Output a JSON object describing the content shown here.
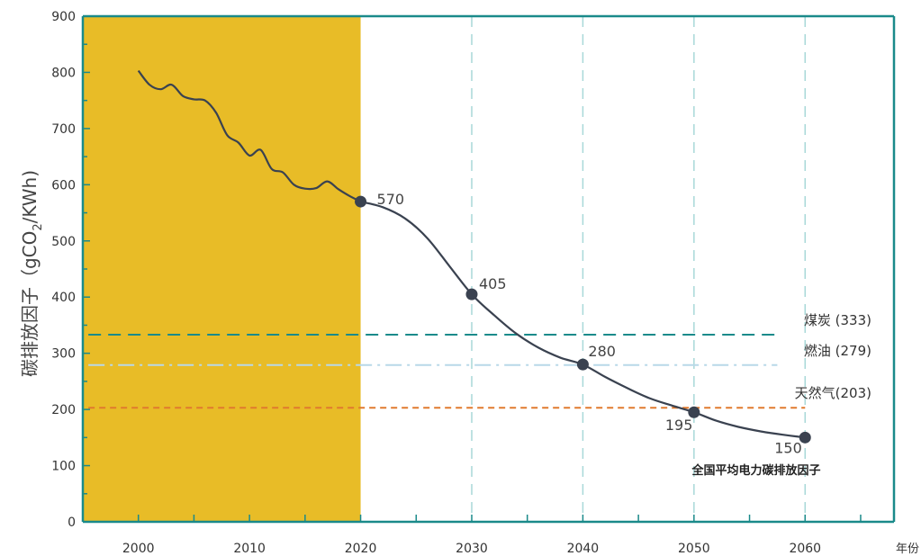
{
  "chart_data": {
    "type": "line",
    "ylabel_main": "碳排放因子（gCO",
    "ylabel_sub": "2",
    "ylabel_tail": "/KWh)",
    "x_unit_label": "年份",
    "xlim": [
      1995,
      2068
    ],
    "ylim": [
      0,
      900
    ],
    "x_ticks": [
      2000,
      2010,
      2020,
      2030,
      2040,
      2050,
      2060
    ],
    "y_ticks": [
      0,
      100,
      200,
      300,
      400,
      500,
      600,
      700,
      800,
      900
    ],
    "grid_x_years": [
      2030,
      2040,
      2050,
      2060
    ],
    "shaded_range": {
      "from": 1995,
      "to": 2020,
      "color": "#E8BC27"
    },
    "series": [
      {
        "color": "#3a4250",
        "history": [
          [
            2000,
            803
          ],
          [
            2001,
            778
          ],
          [
            2002,
            770
          ],
          [
            2003,
            778
          ],
          [
            2004,
            758
          ],
          [
            2005,
            752
          ],
          [
            2006,
            750
          ],
          [
            2007,
            728
          ],
          [
            2008,
            688
          ],
          [
            2009,
            675
          ],
          [
            2010,
            652
          ],
          [
            2011,
            662
          ],
          [
            2012,
            628
          ],
          [
            2013,
            622
          ],
          [
            2014,
            600
          ],
          [
            2015,
            593
          ],
          [
            2016,
            594
          ],
          [
            2017,
            606
          ],
          [
            2018,
            592
          ],
          [
            2019,
            580
          ],
          [
            2020,
            570
          ]
        ],
        "projection": [
          [
            2020,
            570
          ],
          [
            2022,
            560
          ],
          [
            2024,
            540
          ],
          [
            2026,
            505
          ],
          [
            2028,
            455
          ],
          [
            2030,
            405
          ],
          [
            2032,
            368
          ],
          [
            2034,
            335
          ],
          [
            2036,
            310
          ],
          [
            2038,
            292
          ],
          [
            2040,
            280
          ],
          [
            2042,
            258
          ],
          [
            2044,
            238
          ],
          [
            2046,
            220
          ],
          [
            2048,
            207
          ],
          [
            2050,
            195
          ],
          [
            2052,
            180
          ],
          [
            2054,
            169
          ],
          [
            2056,
            161
          ],
          [
            2058,
            155
          ],
          [
            2060,
            150
          ]
        ],
        "markers": [
          {
            "x": 2020,
            "y": 570,
            "label": "570"
          },
          {
            "x": 2030,
            "y": 405,
            "label": "405"
          },
          {
            "x": 2040,
            "y": 280,
            "label": "280"
          },
          {
            "x": 2050,
            "y": 195,
            "label": "195"
          },
          {
            "x": 2060,
            "y": 150,
            "label": "150"
          }
        ],
        "note": "全国平均电力碳排放因子"
      }
    ],
    "reference_lines": [
      {
        "label": "煤炭 (333)",
        "value": 333,
        "color": "#1a8a8a",
        "style": "dashed"
      },
      {
        "label": "燃油 (279)",
        "value": 279,
        "color": "#b8d8e8",
        "style": "dashdot"
      },
      {
        "label": "天然气(203)",
        "value": 203,
        "color": "#e07a2e",
        "style": "dotted"
      }
    ],
    "axis_color": "#1a8a8a",
    "grid_color": "#a8d8d8"
  }
}
